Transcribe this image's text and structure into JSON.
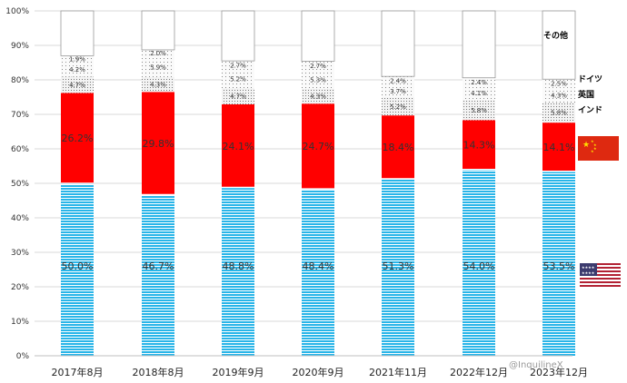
{
  "chart_data": {
    "type": "bar",
    "stacked": true,
    "categories": [
      "2017年8月",
      "2018年8月",
      "2019年9月",
      "2020年9月",
      "2021年11月",
      "2022年12月",
      "2023年12月"
    ],
    "category_labels": [
      "2017年8月",
      "2018年8月",
      "2019年9月",
      "2020年9月",
      "2021年11月",
      "2022年12月",
      "2023年12月"
    ],
    "series": [
      {
        "name": "",
        "values": [
          50.0,
          46.7,
          48.8,
          48.4,
          51.3,
          54.0,
          53.5
        ],
        "labels": [
          "50.0%",
          "46.7%",
          "48.8%",
          "48.4%",
          "51.3%",
          "54.0%",
          "53.5%"
        ],
        "color": "#22b4e6"
      },
      {
        "name": "",
        "values": [
          26.2,
          29.8,
          24.1,
          24.7,
          18.4,
          14.3,
          14.1
        ],
        "labels": [
          "26.2%",
          "29.8%",
          "24.1%",
          "24.7%",
          "18.4%",
          "14.3%",
          "14.1%"
        ],
        "color": "#ff0000"
      },
      {
        "name": "インド",
        "values": [
          4.7,
          4.3,
          4.7,
          4.3,
          5.2,
          5.8,
          5.8
        ],
        "labels": [
          "4.7%",
          "4.3%",
          "4.7%",
          "4.3%",
          "5.2%",
          "5.8%",
          "5.8%"
        ],
        "color": "#bdbdbd"
      },
      {
        "name": "英国",
        "values": [
          4.2,
          5.9,
          5.2,
          5.3,
          3.7,
          4.1,
          4.3
        ],
        "labels": [
          "4.2%",
          "5.9%",
          "5.2%",
          "5.3%",
          "3.7%",
          "4.1%",
          "4.3%"
        ],
        "color": "#e6e6e6"
      },
      {
        "name": "ドイツ",
        "values": [
          1.9,
          2.0,
          2.7,
          2.7,
          2.4,
          2.4,
          2.5
        ],
        "labels": [
          "1.9%",
          "2.0%",
          "2.7%",
          "2.7%",
          "2.4%",
          "2.4%",
          "2.5%"
        ],
        "color": "#f4f4f4"
      },
      {
        "name": "その他",
        "values": [
          13.0,
          11.3,
          14.5,
          14.6,
          19.0,
          19.4,
          19.8
        ],
        "labels": [],
        "color": "#ffffff"
      }
    ],
    "yticks": [
      "0%",
      "10%",
      "20%",
      "30%",
      "40%",
      "50%",
      "60%",
      "70%",
      "80%",
      "90%",
      "100%"
    ],
    "ylim": [
      0,
      100
    ],
    "grid": true,
    "legend_position": "right",
    "flags": [
      "china-flag",
      "us-flag"
    ]
  },
  "watermark": "@InquilineX"
}
